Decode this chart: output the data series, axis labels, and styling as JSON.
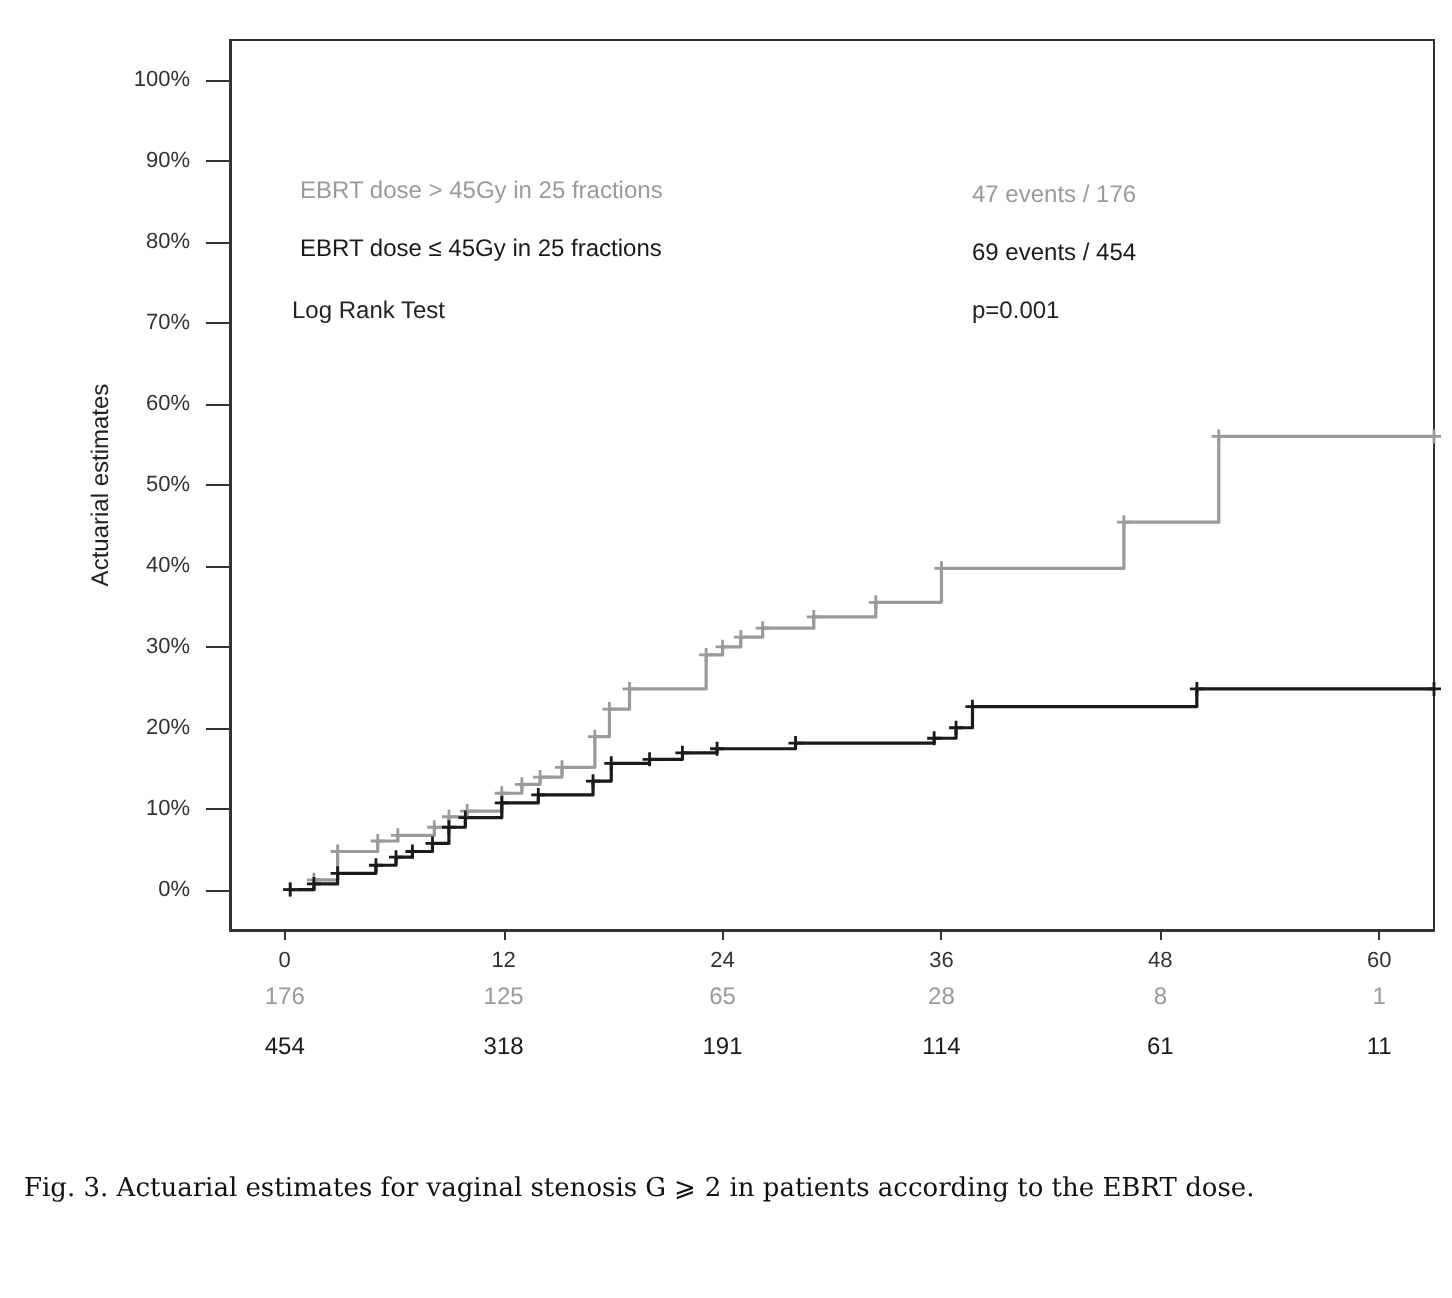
{
  "chart_data": {
    "type": "step",
    "ylabel": "Actuarial estimates",
    "xlim": [
      -3,
      63
    ],
    "xticks": [
      0,
      12,
      24,
      36,
      48,
      60
    ],
    "ylim": [
      -5,
      105
    ],
    "yticks": [
      {
        "value": 0,
        "label": "0%"
      },
      {
        "value": 10,
        "label": "10%"
      },
      {
        "value": 20,
        "label": "20%"
      },
      {
        "value": 30,
        "label": "30%"
      },
      {
        "value": 40,
        "label": "40%"
      },
      {
        "value": 50,
        "label": "50%"
      },
      {
        "value": 60,
        "label": "60%"
      },
      {
        "value": 70,
        "label": "70%"
      },
      {
        "value": 80,
        "label": "80%"
      },
      {
        "value": 90,
        "label": "90%"
      },
      {
        "value": 100,
        "label": "100%"
      }
    ],
    "grid": false,
    "legend": "top left",
    "marker": "cross",
    "line_style": "solid",
    "series": [
      {
        "name": "EBRT dose > 45Gy in 25 fractions",
        "color": "#9a9a9a",
        "x": [
          0.3,
          1.6,
          2.9,
          5.1,
          6.2,
          8.2,
          9,
          10,
          11.9,
          13,
          14,
          15.2,
          17,
          17.8,
          18.9,
          23.1,
          24,
          25,
          26.2,
          29,
          32.4,
          36,
          46,
          51.2,
          63
        ],
        "values": [
          0,
          1.2,
          4.7,
          6,
          6.7,
          7.7,
          9,
          9.7,
          11.9,
          13,
          13.9,
          15.1,
          18.9,
          22.3,
          24.8,
          29,
          30,
          31.2,
          32.3,
          33.7,
          35.5,
          39.7,
          45.4,
          56,
          56
        ]
      },
      {
        "name": "EBRT dose ≤ 45Gy in 25 fractions",
        "color": "#1a1a1a",
        "x": [
          0.3,
          1.6,
          2.9,
          5,
          6.1,
          7,
          8.1,
          9,
          9.9,
          11.9,
          13.9,
          16.9,
          17.9,
          20,
          21.8,
          23.7,
          28,
          35.6,
          36.8,
          37.7,
          50,
          63
        ],
        "values": [
          0,
          0.7,
          2,
          3,
          4,
          4.7,
          5.7,
          7.7,
          8.9,
          10.7,
          11.7,
          13.4,
          15.6,
          16.1,
          16.9,
          17.4,
          18.1,
          18.7,
          20,
          22.6,
          24.8,
          24.8
        ]
      }
    ],
    "annotations": [
      "47 events / 176",
      "69 events / 454",
      "Log Rank Test",
      "p=0.001",
      "176",
      "125",
      "65",
      "28",
      "8",
      "1",
      "454",
      "318",
      "191",
      "114",
      "61",
      "11",
      "Fig. 3. Actuarial estimates for vaginal stenosis G ⩾ 2 in patients according to the EBRT dose."
    ]
  }
}
